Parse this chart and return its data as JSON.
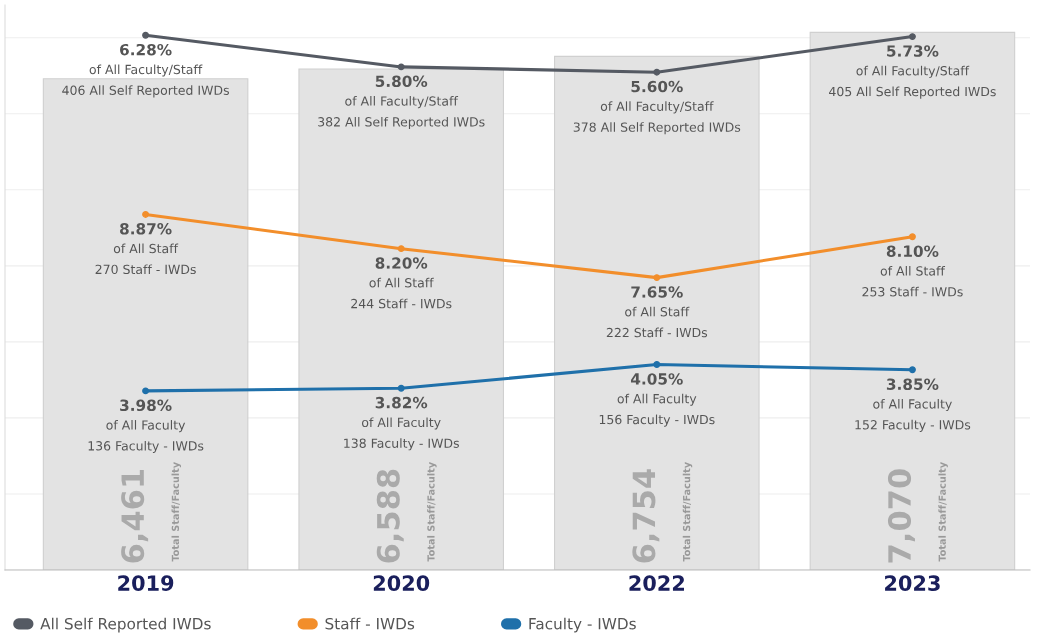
{
  "chart_data": {
    "type": "bar",
    "categories": [
      "2019",
      "2020",
      "2022",
      "2023"
    ],
    "values": [
      6461,
      6588,
      6754,
      7070
    ],
    "color": "#e3e3e3",
    "value_labels": [
      "6,461\nTotal Staff/Faculty",
      "6,588\nTotal Staff/Faculty",
      "6,754\nTotal Staff/Faculty",
      "7,070\nTotal Staff/Faculty"
    ],
    "ylim": [
      0,
      7430
    ],
    "yticks": [
      {
        "value": 0,
        "label": null
      },
      {
        "value": 1000,
        "label": null
      },
      {
        "value": 2000,
        "label": null
      },
      {
        "value": 3000,
        "label": null
      },
      {
        "value": 4000,
        "label": null
      },
      {
        "value": 5000,
        "label": null
      },
      {
        "value": 6000,
        "label": null
      },
      {
        "value": 7000,
        "label": null
      }
    ],
    "y2lim": [
      0,
      429
    ],
    "tick_labels": "x",
    "grid": "y",
    "legend": "bottom",
    "marker": "circle",
    "line_style": "solid",
    "series": [
      {
        "name": "All Self Reported IWDs",
        "type": "line",
        "axis": "y2",
        "color": "#555a63",
        "values": [
          406,
          382,
          378,
          405
        ],
        "value_labels": [
          "6.28%\nof All Faculty/Staff\n406 All Self Reported IWDs",
          "5.80%\nof All Faculty/Staff\n382 All Self Reported IWDs",
          "5.60%\nof All Faculty/Staff\n378 All Self Reported IWDs",
          "5.73%\nof All Faculty/Staff\n405 All Self Reported IWDs"
        ]
      },
      {
        "name": "Staff - IWDs",
        "type": "line",
        "axis": "y2",
        "color": "#f28e2b",
        "values": [
          270,
          244,
          222,
          253
        ],
        "value_labels": [
          "8.87%\nof All Staff\n270 Staff - IWDs",
          "8.20%\nof All Staff\n244 Staff - IWDs",
          "7.65%\nof All Staff\n222 Staff - IWDs",
          "8.10%\nof All Staff\n253 Staff - IWDs"
        ]
      },
      {
        "name": "Faculty - IWDs",
        "type": "line",
        "axis": "y2",
        "color": "#1f70aa",
        "values": [
          136,
          138,
          156,
          152
        ],
        "value_labels": [
          "3.98%\nof All Faculty\n136 Faculty - IWDs",
          "3.82%\nof All Faculty\n138 Faculty - IWDs",
          "4.05%\nof All Faculty\n156 Faculty - IWDs",
          "3.85%\nof All Faculty\n152 Faculty - IWDs"
        ]
      }
    ]
  }
}
